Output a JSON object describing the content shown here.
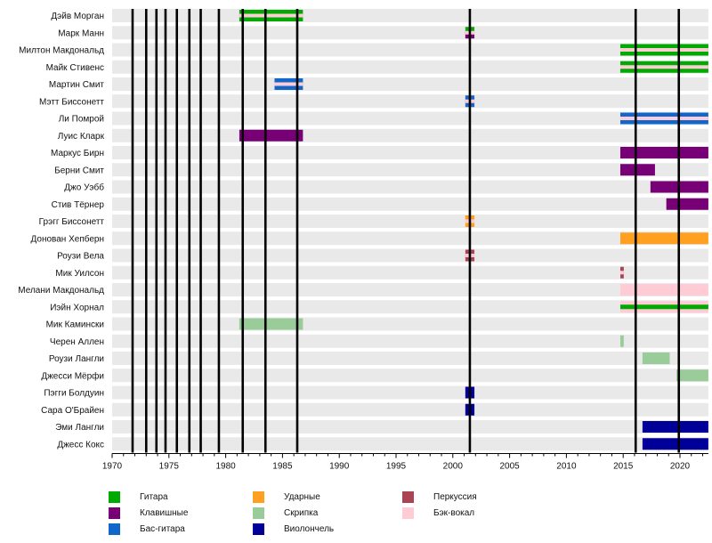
{
  "chart_data": {
    "type": "timeline",
    "title": "",
    "xlabel": "",
    "ylabel": "",
    "xlim": [
      1970,
      2022.5
    ],
    "x_ticks": [
      1970,
      1975,
      1980,
      1985,
      1990,
      1995,
      2000,
      2005,
      2010,
      2015,
      2020
    ],
    "legend_placement": "bottom",
    "instruments": [
      {
        "key": "guitar",
        "label": "Гитара",
        "color": "#00aa00"
      },
      {
        "key": "keyboards",
        "label": "Клавишные",
        "color": "#770077"
      },
      {
        "key": "bass",
        "label": "Бас-гитара",
        "color": "#1166cc"
      },
      {
        "key": "drums",
        "label": "Ударные",
        "color": "#ffa020"
      },
      {
        "key": "violin",
        "label": "Скрипка",
        "color": "#99cc99"
      },
      {
        "key": "cello",
        "label": "Виолончель",
        "color": "#000099"
      },
      {
        "key": "percussion",
        "label": "Перкуссия",
        "color": "#aa4455"
      },
      {
        "key": "backing_vocals",
        "label": "Бэк-вокал",
        "color": "#ffccd5"
      }
    ],
    "album_lines": [
      1971.8,
      1973.0,
      1973.9,
      1974.7,
      1975.7,
      1976.8,
      1977.8,
      1979.4,
      1981.5,
      1983.5,
      1986.3,
      2001.5,
      2016.1,
      2019.9
    ],
    "members": [
      {
        "name": "Дэйв Морган",
        "periods": [
          {
            "start": 1981.2,
            "end": 1986.8,
            "instruments": [
              "guitar",
              "backing_vocals"
            ]
          }
        ]
      },
      {
        "name": "Марк Манн",
        "periods": [
          {
            "start": 2001.1,
            "end": 2001.9,
            "instruments": [
              "guitar",
              "keyboards",
              "backing_vocals"
            ]
          }
        ]
      },
      {
        "name": "Милтон Макдональд",
        "periods": [
          {
            "start": 2014.75,
            "end": 2022.5,
            "instruments": [
              "guitar",
              "backing_vocals"
            ]
          }
        ]
      },
      {
        "name": "Майк Стивенс",
        "periods": [
          {
            "start": 2014.75,
            "end": 2022.5,
            "instruments": [
              "guitar",
              "backing_vocals"
            ]
          }
        ]
      },
      {
        "name": "Мартин Смит",
        "periods": [
          {
            "start": 1984.3,
            "end": 1986.8,
            "instruments": [
              "bass",
              "backing_vocals"
            ]
          }
        ]
      },
      {
        "name": "Мэтт Биссонетт",
        "periods": [
          {
            "start": 2001.1,
            "end": 2001.9,
            "instruments": [
              "bass",
              "backing_vocals"
            ]
          }
        ]
      },
      {
        "name": "Ли Помрой",
        "periods": [
          {
            "start": 2014.75,
            "end": 2022.5,
            "instruments": [
              "bass",
              "backing_vocals"
            ]
          }
        ]
      },
      {
        "name": "Луис Кларк",
        "periods": [
          {
            "start": 1981.2,
            "end": 1986.8,
            "instruments": [
              "keyboards"
            ]
          }
        ]
      },
      {
        "name": "Маркус Бирн",
        "periods": [
          {
            "start": 2014.75,
            "end": 2022.5,
            "instruments": [
              "keyboards"
            ]
          }
        ]
      },
      {
        "name": "Берни Смит",
        "periods": [
          {
            "start": 2014.75,
            "end": 2017.8,
            "instruments": [
              "keyboards"
            ]
          }
        ]
      },
      {
        "name": "Джо Уэбб",
        "periods": [
          {
            "start": 2017.4,
            "end": 2022.5,
            "instruments": [
              "keyboards"
            ]
          }
        ]
      },
      {
        "name": "Стив Тёрнер",
        "periods": [
          {
            "start": 2018.8,
            "end": 2022.5,
            "instruments": [
              "keyboards"
            ]
          }
        ]
      },
      {
        "name": "Грэгг Биссонетт",
        "periods": [
          {
            "start": 2001.1,
            "end": 2001.9,
            "instruments": [
              "drums",
              "backing_vocals"
            ]
          }
        ]
      },
      {
        "name": "Донован Хепберн",
        "periods": [
          {
            "start": 2014.75,
            "end": 2022.5,
            "instruments": [
              "drums"
            ]
          }
        ]
      },
      {
        "name": "Роузи Вела",
        "periods": [
          {
            "start": 2001.1,
            "end": 2001.9,
            "instruments": [
              "percussion",
              "backing_vocals"
            ]
          }
        ]
      },
      {
        "name": "Мик Уилсон",
        "periods": [
          {
            "start": 2014.75,
            "end": 2015.05,
            "instruments": [
              "percussion",
              "backing_vocals"
            ]
          }
        ]
      },
      {
        "name": "Мелани Макдональд",
        "periods": [
          {
            "start": 2014.75,
            "end": 2022.5,
            "instruments": [
              "backing_vocals"
            ]
          }
        ]
      },
      {
        "name": "Иэйн Хорнал",
        "periods": [
          {
            "start": 2014.75,
            "end": 2022.5,
            "instruments": [
              "guitar",
              "backing_vocals"
            ]
          }
        ]
      },
      {
        "name": "Мик Камински",
        "periods": [
          {
            "start": 1981.2,
            "end": 1986.8,
            "instruments": [
              "violin"
            ]
          }
        ]
      },
      {
        "name": "Черен Аллен",
        "periods": [
          {
            "start": 2014.75,
            "end": 2015.05,
            "instruments": [
              "violin"
            ]
          }
        ]
      },
      {
        "name": "Роузи Лангли",
        "periods": [
          {
            "start": 2016.7,
            "end": 2019.1,
            "instruments": [
              "violin"
            ]
          }
        ]
      },
      {
        "name": "Джесси Мёрфи",
        "periods": [
          {
            "start": 2019.7,
            "end": 2022.5,
            "instruments": [
              "violin"
            ]
          }
        ]
      },
      {
        "name": "Пэгги Болдуин",
        "periods": [
          {
            "start": 2001.1,
            "end": 2001.9,
            "instruments": [
              "cello"
            ]
          }
        ]
      },
      {
        "name": "Сара О'Брайен",
        "periods": [
          {
            "start": 2001.1,
            "end": 2001.9,
            "instruments": [
              "cello"
            ]
          }
        ]
      },
      {
        "name": "Эми Лангли",
        "periods": [
          {
            "start": 2016.7,
            "end": 2022.5,
            "instruments": [
              "cello"
            ]
          }
        ]
      },
      {
        "name": "Джесс Кокс",
        "periods": [
          {
            "start": 2016.7,
            "end": 2022.5,
            "instruments": [
              "cello"
            ]
          }
        ]
      }
    ]
  },
  "colors": {
    "row_background": "#e9e9e9",
    "album_line": "#000000"
  }
}
